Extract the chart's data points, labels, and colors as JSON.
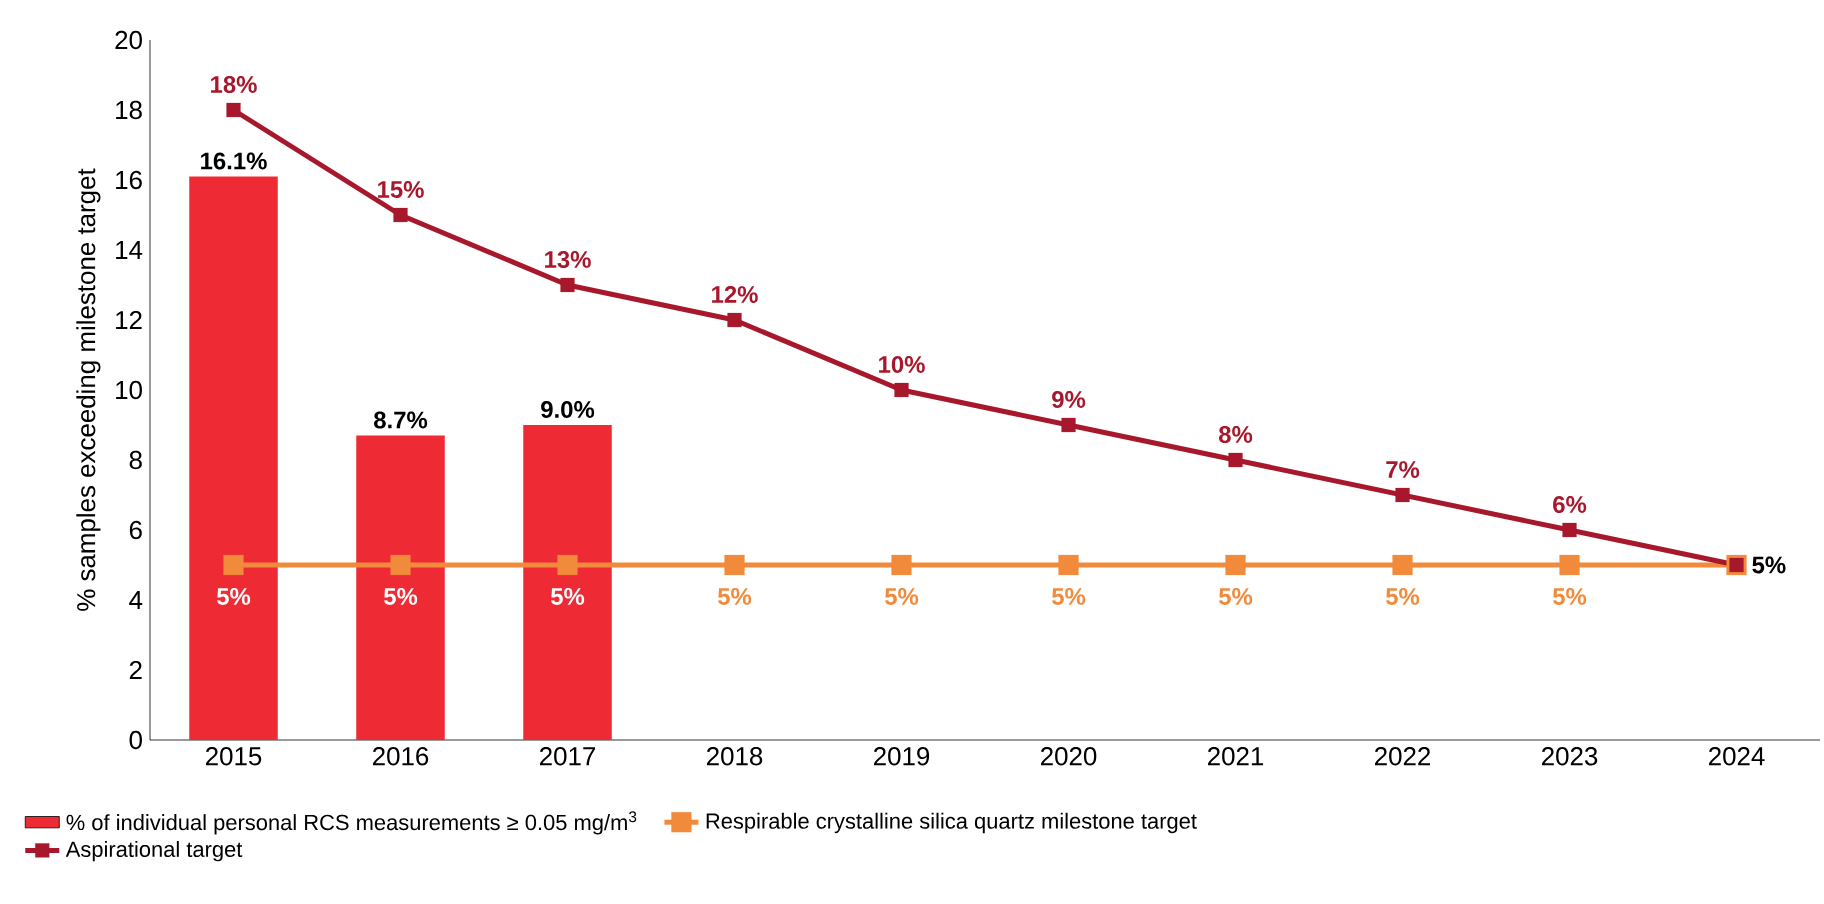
{
  "chart_data": {
    "type": "bar",
    "ylabel": "% samples exceeding milestone target",
    "categories": [
      "2015",
      "2016",
      "2017",
      "2018",
      "2019",
      "2020",
      "2021",
      "2022",
      "2023",
      "2024"
    ],
    "series": [
      {
        "name": "% of individual personal RCS measurements ≥ 0.05 mg/m$^{3}$",
        "color": "#ee2a35",
        "values": [
          16.1,
          8.7,
          9.0,
          null,
          null,
          null,
          null,
          null,
          null,
          null
        ],
        "value_labels": [
          "16.1%",
          "8.7%",
          "9.0%",
          null,
          null,
          null,
          null,
          null,
          null,
          null
        ]
      },
      {
        "name": "Respirable crystalline silica quartz milestone target",
        "type": "line",
        "color": "#f28a3c",
        "marker": "square",
        "values": [
          5,
          5,
          5,
          5,
          5,
          5,
          5,
          5,
          5,
          5
        ],
        "value_labels": [
          "5%",
          "5%",
          "5%",
          "5%",
          "5%",
          "5%",
          "5%",
          "5%",
          "5%",
          null
        ]
      },
      {
        "name": "Aspirational target",
        "type": "line",
        "color": "#a8182c",
        "marker": "square",
        "values": [
          18,
          15,
          13,
          12,
          10,
          9,
          8,
          7,
          6,
          5
        ],
        "value_labels": [
          "18%",
          "15%",
          "13%",
          "12%",
          "10%",
          "9%",
          "8%",
          "7%",
          "6%",
          "5%"
        ]
      }
    ],
    "ylim": [
      0,
      20
    ],
    "yticks": [
      0,
      2,
      4,
      6,
      8,
      10,
      12,
      14,
      16,
      18,
      20
    ],
    "grid": false,
    "legend": "bottom"
  }
}
